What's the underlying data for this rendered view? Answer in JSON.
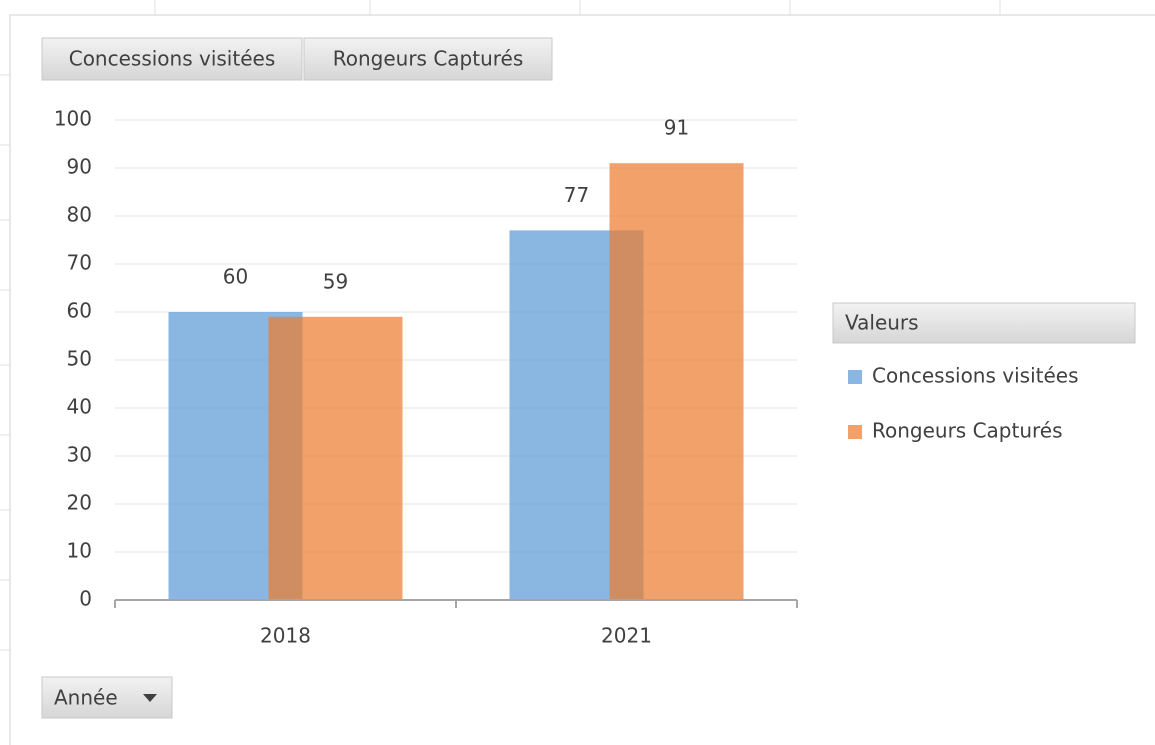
{
  "chart_data": {
    "type": "bar",
    "categories": [
      "2018",
      "2021"
    ],
    "series": [
      {
        "name": "Concessions visitées",
        "color": "#5b9bd5",
        "values": [
          60,
          77
        ]
      },
      {
        "name": "Rongeurs Capturés",
        "color": "#ed7d31",
        "values": [
          59,
          91
        ]
      }
    ],
    "ylim": [
      0,
      100
    ],
    "yticks": [
      0,
      10,
      20,
      30,
      40,
      50,
      60,
      70,
      80,
      90,
      100
    ],
    "grid": true,
    "legend_title": "Valeurs",
    "legend": "right",
    "axis_field": "Année"
  }
}
